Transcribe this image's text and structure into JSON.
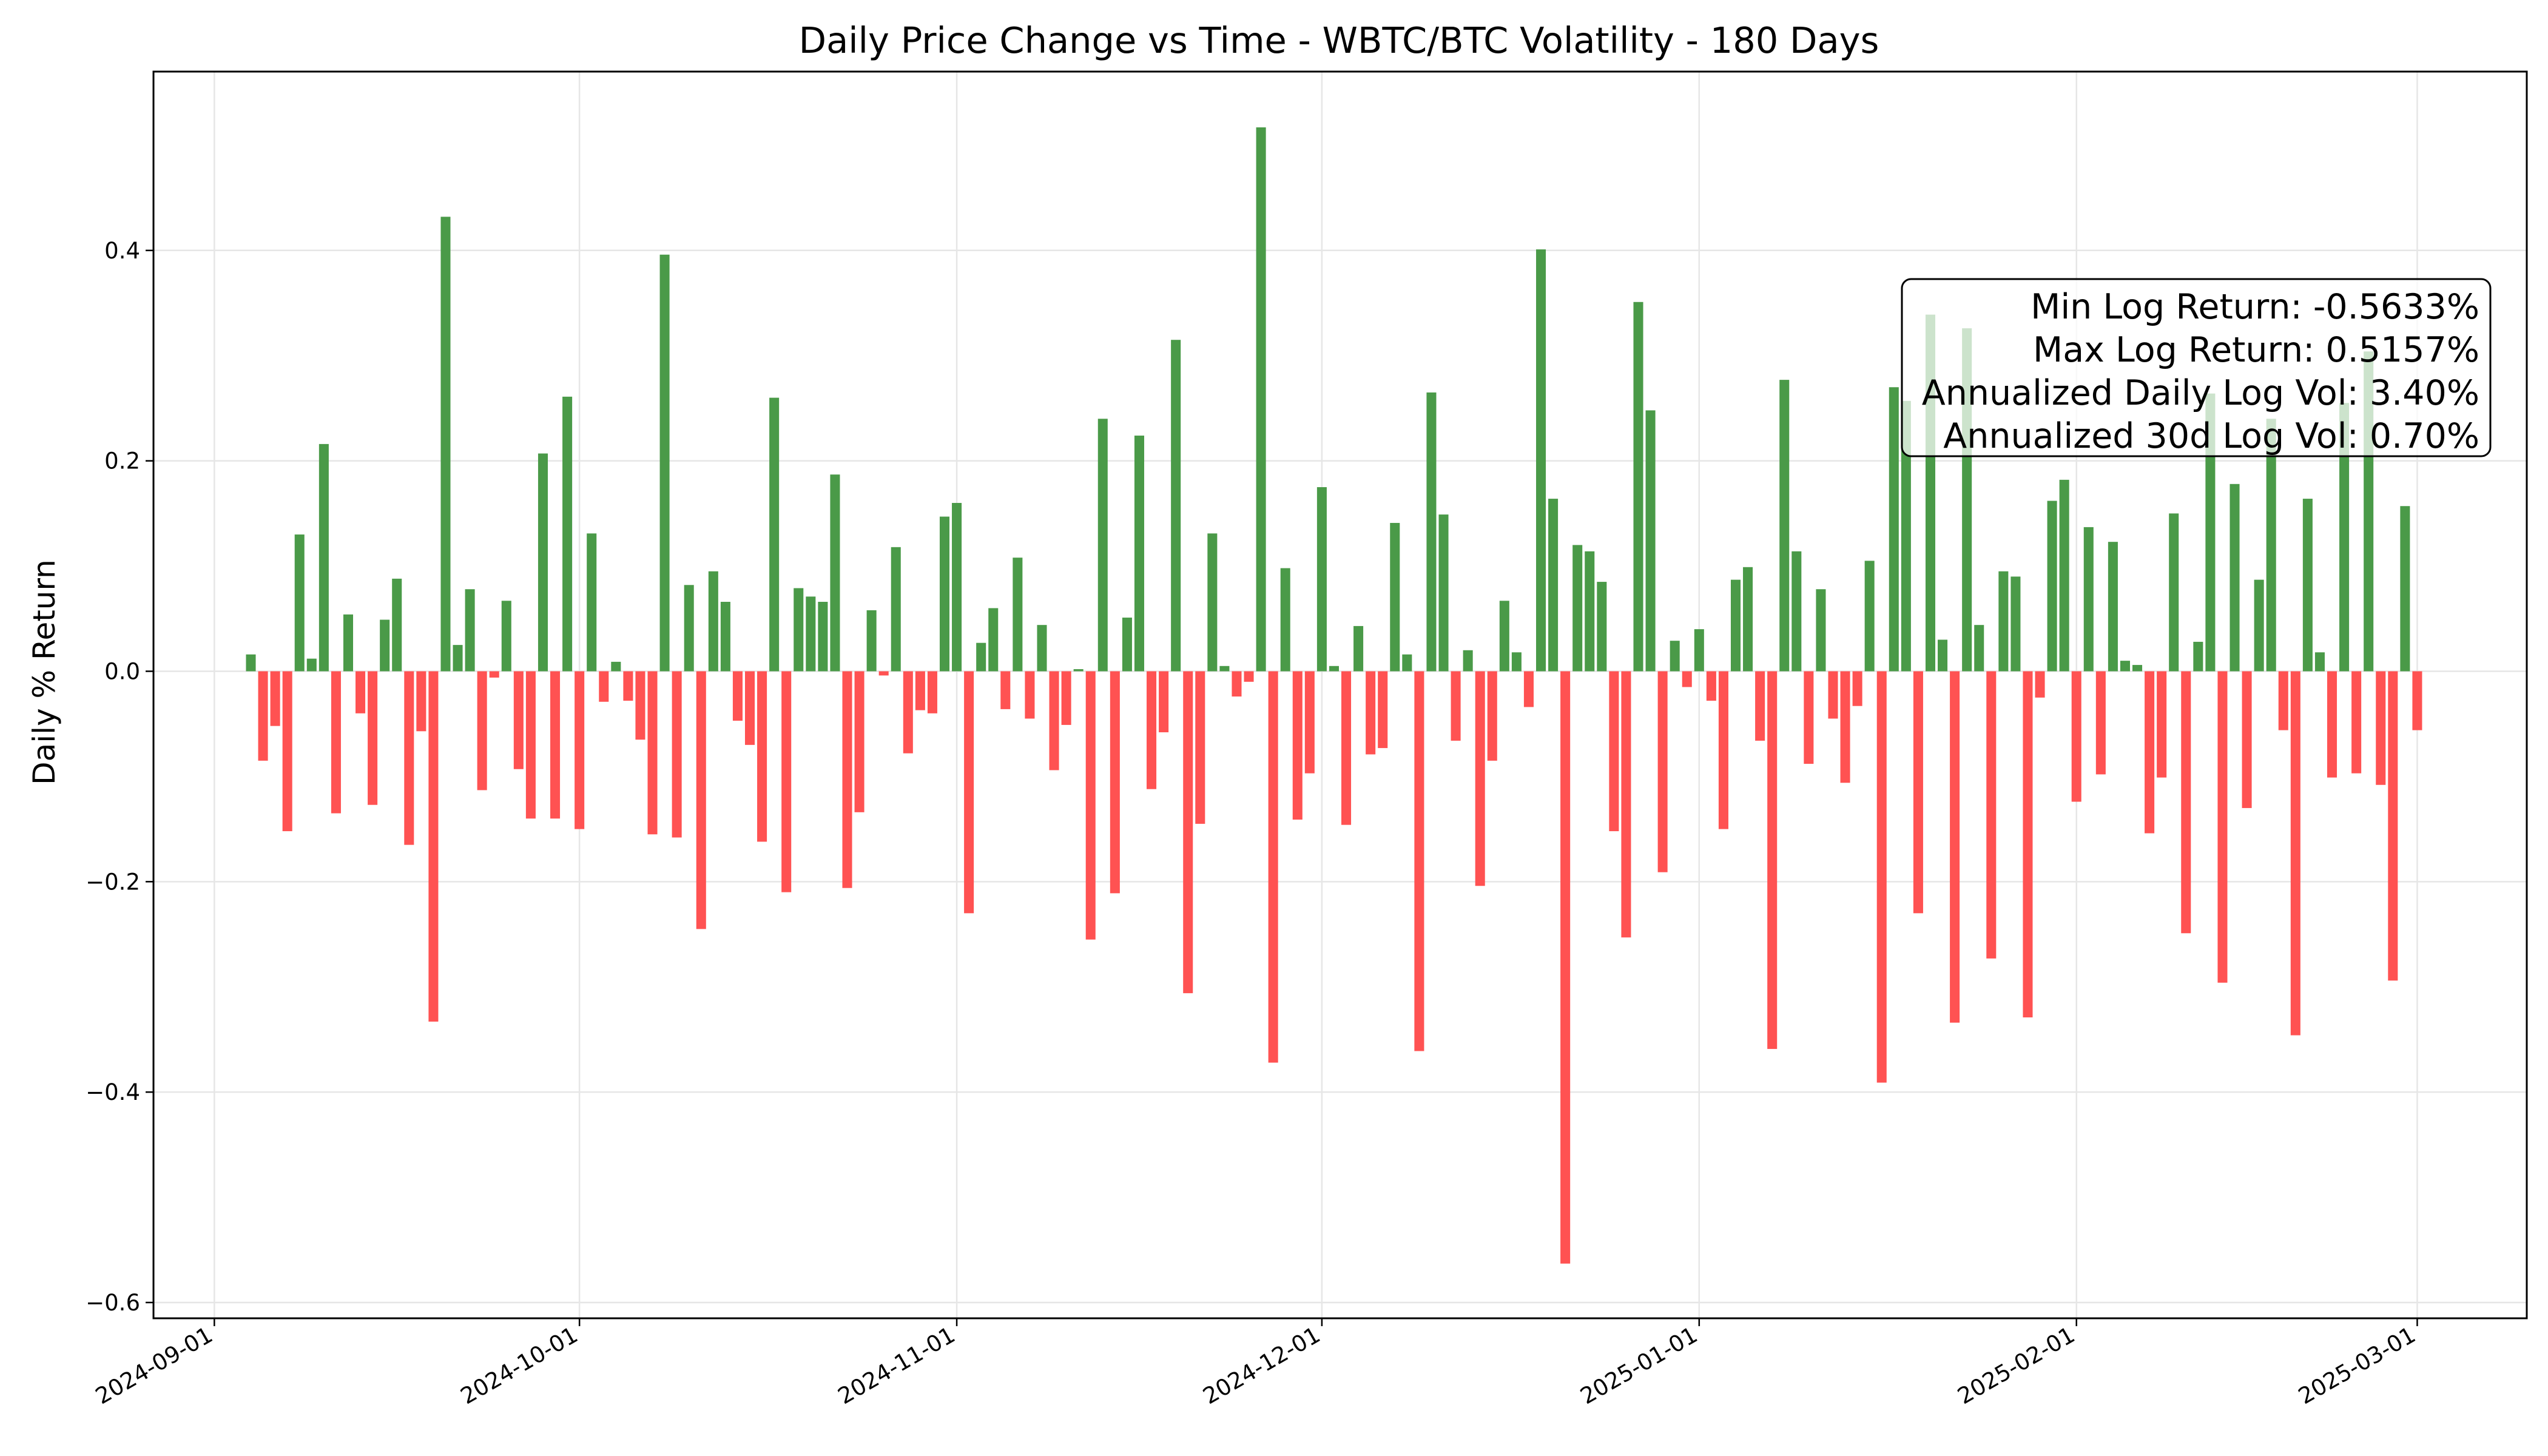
{
  "chart_data": {
    "type": "bar",
    "title": "Daily Price Change vs Time - WBTC/BTC Volatility - 180 Days",
    "xlabel": "",
    "ylabel": "Daily % Return",
    "xlim": [
      "2024-08-27",
      "2025-03-10"
    ],
    "ylim": [
      -0.615,
      0.57
    ],
    "x_ticks": [
      "2024-09-01",
      "2024-10-01",
      "2024-11-01",
      "2024-12-01",
      "2025-01-01",
      "2025-02-01",
      "2025-03-01"
    ],
    "y_ticks": [
      -0.6,
      -0.4,
      -0.2,
      0.0,
      0.2,
      0.4
    ],
    "y_tick_labels": [
      "−0.6",
      "−0.4",
      "−0.2",
      "0.0",
      "0.2",
      "0.4"
    ],
    "grid": true,
    "colors": {
      "positive": "#4a9a48",
      "negative": "#ff5252"
    },
    "start_date": "2024-09-04",
    "values": [
      0.016,
      -0.085,
      -0.052,
      -0.152,
      0.13,
      0.012,
      0.216,
      -0.135,
      0.054,
      -0.04,
      -0.127,
      0.049,
      0.088,
      -0.165,
      -0.057,
      -0.333,
      0.432,
      0.025,
      0.078,
      -0.113,
      -0.006,
      0.067,
      -0.093,
      -0.14,
      0.207,
      -0.14,
      0.261,
      -0.15,
      0.131,
      -0.029,
      0.009,
      -0.028,
      -0.065,
      -0.155,
      0.396,
      -0.158,
      0.082,
      -0.245,
      0.095,
      0.066,
      -0.047,
      -0.07,
      -0.162,
      0.26,
      -0.21,
      0.079,
      0.071,
      0.066,
      0.187,
      -0.206,
      -0.134,
      0.058,
      -0.004,
      0.118,
      -0.078,
      -0.037,
      -0.04,
      0.147,
      0.16,
      -0.23,
      0.027,
      0.06,
      -0.036,
      0.108,
      -0.045,
      0.044,
      -0.094,
      -0.051,
      0.002,
      -0.255,
      0.24,
      -0.211,
      0.051,
      0.224,
      -0.112,
      -0.058,
      0.315,
      -0.306,
      -0.145,
      0.131,
      0.005,
      -0.024,
      -0.01,
      0.517,
      -0.372,
      0.098,
      -0.141,
      -0.097,
      0.175,
      0.005,
      -0.146,
      0.043,
      -0.079,
      -0.073,
      0.141,
      0.016,
      -0.361,
      0.265,
      0.149,
      -0.066,
      0.02,
      -0.204,
      -0.085,
      0.067,
      0.018,
      -0.034,
      0.401,
      0.164,
      -0.563,
      0.12,
      0.114,
      0.085,
      -0.152,
      -0.253,
      0.351,
      0.248,
      -0.191,
      0.029,
      -0.015,
      0.04,
      -0.028,
      -0.15,
      0.087,
      0.099,
      -0.066,
      -0.359,
      0.277,
      0.114,
      -0.088,
      0.078,
      -0.045,
      -0.106,
      -0.033,
      0.105,
      -0.391,
      0.27,
      0.257,
      -0.23,
      0.339,
      0.03,
      -0.334,
      0.326,
      0.044,
      -0.273,
      0.095,
      0.09,
      -0.329,
      -0.025,
      0.162,
      0.182,
      -0.124,
      0.137,
      -0.098,
      0.123,
      0.01,
      0.006,
      -0.154,
      -0.101,
      0.15,
      -0.249,
      0.028,
      0.264,
      -0.296,
      0.178,
      -0.13,
      0.087,
      0.24,
      -0.056,
      -0.346,
      0.164,
      0.018,
      -0.101,
      0.255,
      -0.097,
      0.304,
      -0.108,
      -0.294,
      0.157,
      -0.056
    ],
    "stats_box": [
      "Min Log Return: -0.5633%",
      "Max Log Return: 0.5157%",
      "Annualized Daily Log Vol: 3.40%",
      "Annualized 30d Log Vol: 0.70%"
    ],
    "stats_box_position": "upper-right"
  }
}
